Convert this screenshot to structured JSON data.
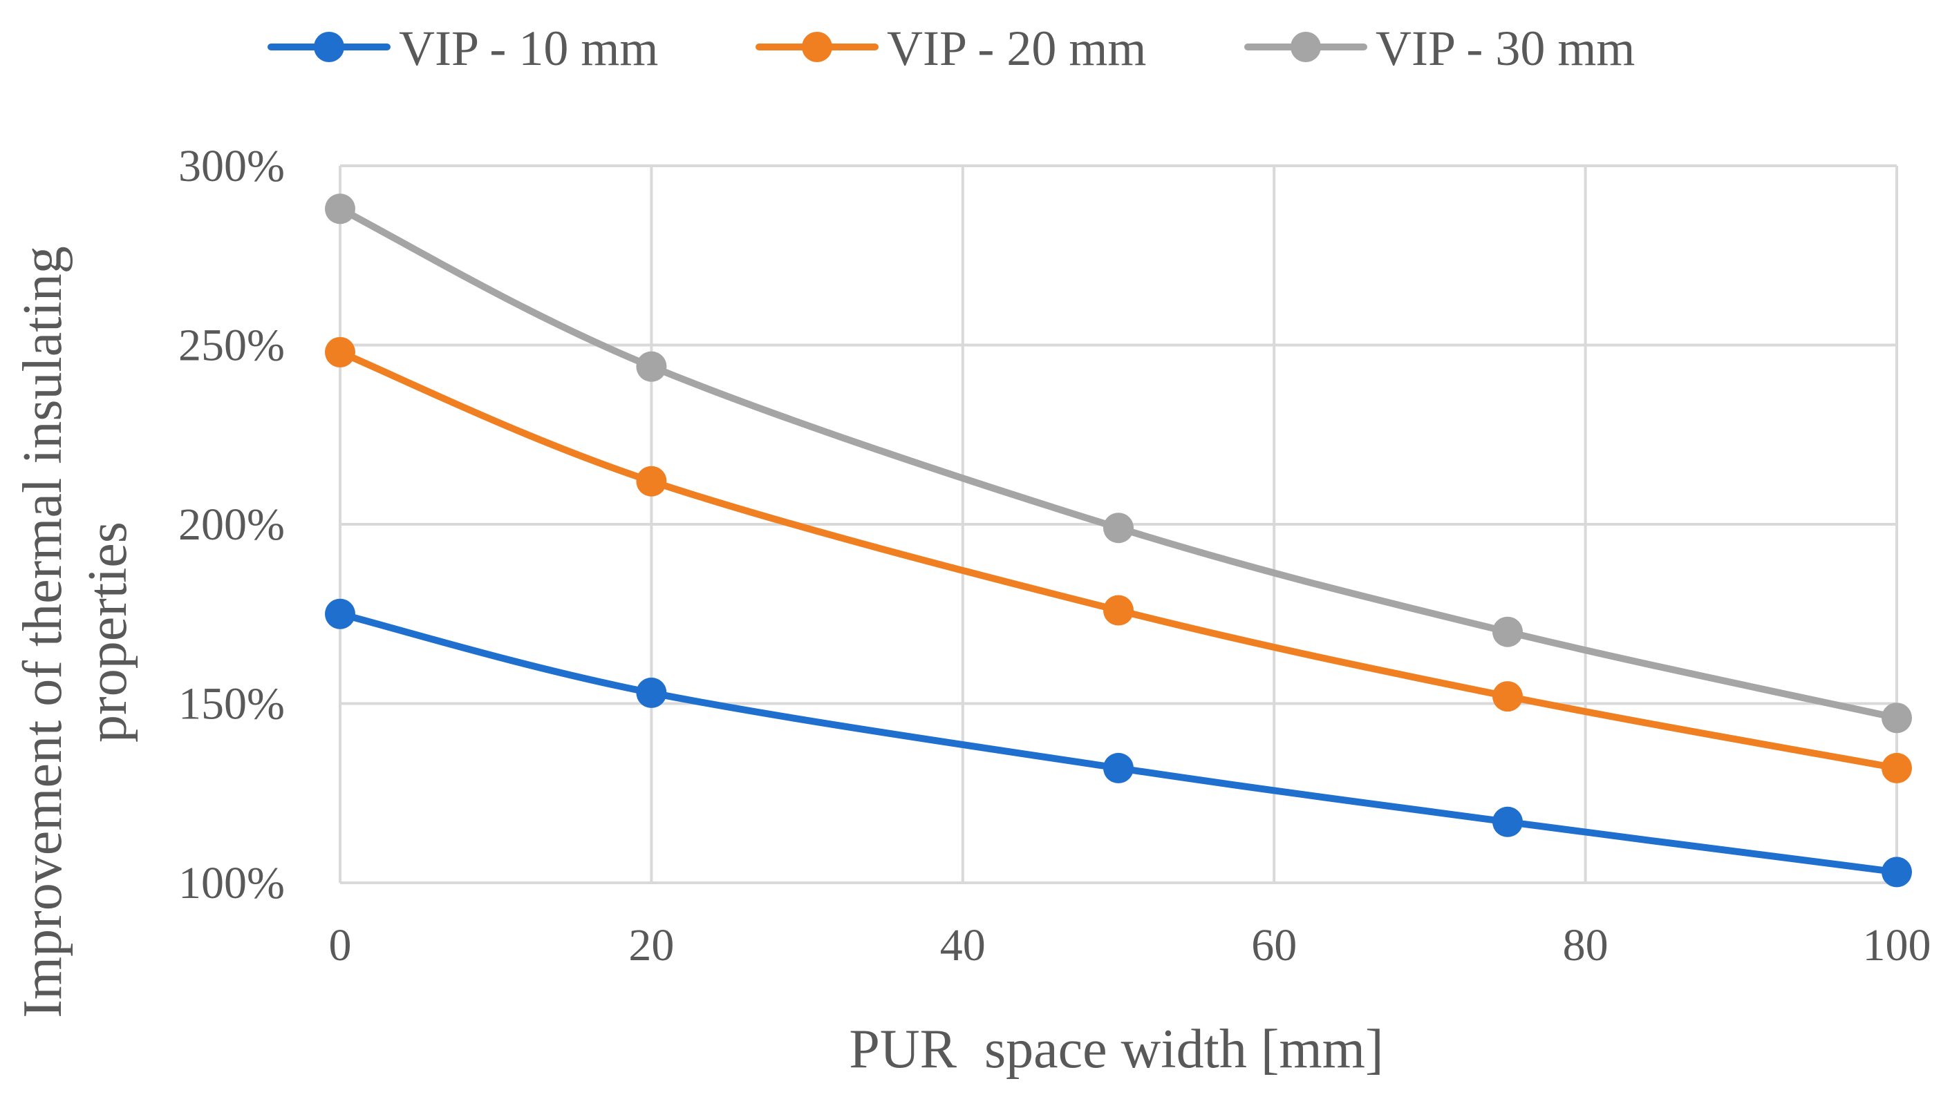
{
  "chart_data": {
    "type": "line",
    "title": "",
    "xlabel": "PUR  space width [mm]",
    "ylabel_lines": [
      "Improvement of thermal insulating",
      "properties"
    ],
    "x": [
      0,
      20,
      50,
      75,
      100
    ],
    "xlim": [
      0,
      100
    ],
    "ylim": [
      100,
      300
    ],
    "x_ticks": [
      0,
      20,
      40,
      60,
      80,
      100
    ],
    "x_tick_labels": [
      "0",
      "20",
      "40",
      "60",
      "80",
      "100"
    ],
    "y_ticks": [
      100,
      150,
      200,
      250,
      300
    ],
    "y_tick_labels": [
      "100%",
      "150%",
      "200%",
      "250%",
      "300%"
    ],
    "grid": true,
    "legend_position": "top",
    "series": [
      {
        "name": "VIP - 10 mm",
        "color": "#1f6fcf",
        "values": [
          175,
          153,
          132,
          117,
          103
        ]
      },
      {
        "name": "VIP - 20 mm",
        "color": "#f07f21",
        "values": [
          248,
          212,
          176,
          152,
          132
        ]
      },
      {
        "name": "VIP - 30 mm",
        "color": "#a5a5a5",
        "values": [
          288,
          244,
          199,
          170,
          146
        ]
      }
    ]
  }
}
